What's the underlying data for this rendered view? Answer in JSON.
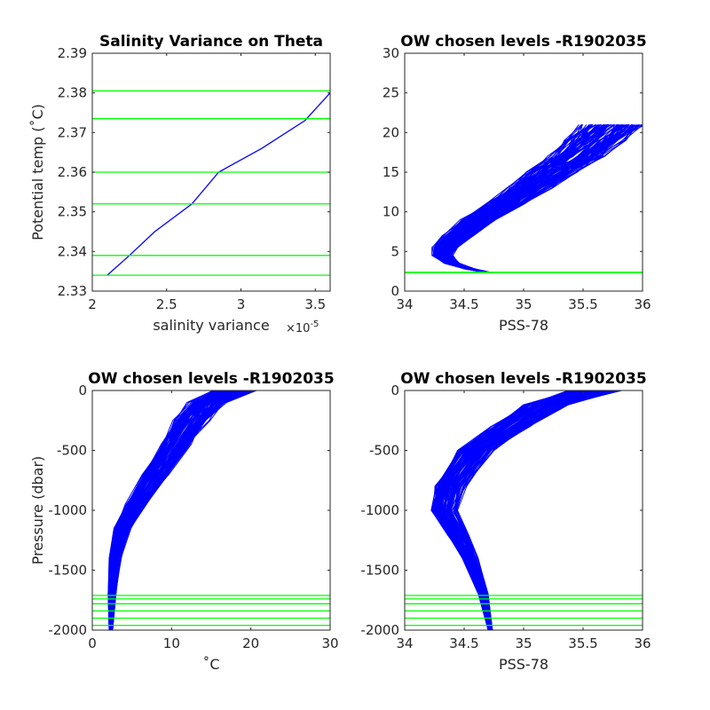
{
  "chart_data": [
    {
      "id": "tl",
      "type": "line",
      "title": "Salinity Variance on Theta",
      "xlabel": "salinity variance",
      "x_exponent_base": "×10",
      "x_exponent_power": "-5",
      "ylabel": "Potential temp (˚C)",
      "xlim": [
        2.0,
        3.6
      ],
      "ylim": [
        2.33,
        2.39
      ],
      "x_ticks": [
        2,
        2.5,
        3,
        3.5
      ],
      "x_tick_labels": [
        "2",
        "2.5",
        "3",
        "3.5"
      ],
      "y_ticks": [
        2.33,
        2.34,
        2.35,
        2.36,
        2.37,
        2.38,
        2.39
      ],
      "y_tick_labels": [
        "2.33",
        "2.34",
        "2.35",
        "2.36",
        "2.37",
        "2.38",
        "2.39"
      ],
      "series": [
        {
          "color": "#0000ff",
          "x": [
            2.1,
            2.25,
            2.42,
            2.67,
            2.85,
            3.14,
            3.43,
            3.6
          ],
          "y": [
            2.334,
            2.339,
            2.345,
            2.352,
            2.36,
            2.366,
            2.373,
            2.38
          ]
        }
      ],
      "hlines": {
        "color": "#00ff00",
        "values": [
          2.334,
          2.339,
          2.352,
          2.36,
          2.3735,
          2.3805
        ]
      }
    },
    {
      "id": "tr",
      "type": "line",
      "title": "OW chosen levels -R1902035",
      "xlabel": "PSS-78",
      "ylabel": "",
      "xlim": [
        34,
        36
      ],
      "ylim": [
        0,
        30
      ],
      "x_ticks": [
        34,
        34.5,
        35,
        35.5,
        36
      ],
      "x_tick_labels": [
        "34",
        "34.5",
        "35",
        "35.5",
        "36"
      ],
      "y_ticks": [
        0,
        5,
        10,
        15,
        20,
        25,
        30
      ],
      "y_tick_labels": [
        "0",
        "5",
        "10",
        "15",
        "20",
        "25",
        "30"
      ],
      "series_envelope": {
        "color": "#0000ff",
        "profile_count": 110,
        "x": [
          34.72,
          34.55,
          34.4,
          34.32,
          34.34,
          34.45,
          34.62,
          34.85,
          35.05,
          35.25,
          35.45,
          35.6,
          35.75
        ],
        "y": [
          2.3,
          2.8,
          3.5,
          4.5,
          5.5,
          7.0,
          9.0,
          11.0,
          13.0,
          15.0,
          17.0,
          19.0,
          21.0
        ],
        "spread": 0.22
      },
      "hlines": {
        "color": "#00ff00",
        "values": [
          2.334,
          2.339,
          2.352,
          2.36,
          2.3735,
          2.3805
        ]
      }
    },
    {
      "id": "bl",
      "type": "line",
      "title": "OW chosen levels -R1902035",
      "xlabel": "˚C",
      "ylabel": "Pressure (dbar)",
      "xlim": [
        0,
        30
      ],
      "ylim": [
        -2000,
        0
      ],
      "x_ticks": [
        0,
        10,
        20,
        30
      ],
      "x_tick_labels": [
        "0",
        "10",
        "20",
        "30"
      ],
      "y_ticks": [
        -2000,
        -1500,
        -1000,
        -500,
        0
      ],
      "y_tick_labels": [
        "-2000",
        "-1500",
        "-1000",
        "-500",
        "0"
      ],
      "series_envelope": {
        "color": "#0000ff",
        "profile_count": 110,
        "x": [
          2.35,
          2.5,
          2.9,
          3.8,
          5.5,
          8.0,
          10.5,
          12.5,
          14.5,
          18.0
        ],
        "y": [
          -2000,
          -1700,
          -1400,
          -1150,
          -950,
          -700,
          -450,
          -250,
          -100,
          0
        ],
        "spread": 2.2
      },
      "hlines": {
        "color": "#00ff00",
        "values": [
          -1960,
          -1900,
          -1840,
          -1780,
          -1740,
          -1710
        ]
      }
    },
    {
      "id": "br",
      "type": "line",
      "title": "OW chosen levels -R1902035",
      "xlabel": "PSS-78",
      "ylabel": "",
      "xlim": [
        34,
        36
      ],
      "ylim": [
        -2000,
        0
      ],
      "x_ticks": [
        34,
        34.5,
        35,
        35.5,
        36
      ],
      "x_tick_labels": [
        "34",
        "34.5",
        "35",
        "35.5",
        "36"
      ],
      "y_ticks": [
        -2000,
        -1500,
        -1000,
        -500,
        0
      ],
      "y_tick_labels": [
        "-2000",
        "-1500",
        "-1000",
        "-500",
        "0"
      ],
      "series_envelope": {
        "color": "#0000ff",
        "profile_count": 110,
        "x": [
          34.72,
          34.66,
          34.55,
          34.45,
          34.33,
          34.38,
          34.6,
          34.9,
          35.2,
          35.6
        ],
        "y": [
          -2000,
          -1700,
          -1400,
          -1200,
          -1000,
          -800,
          -500,
          -300,
          -120,
          0
        ],
        "spread": 0.18
      },
      "hlines": {
        "color": "#00ff00",
        "values": [
          -1960,
          -1900,
          -1840,
          -1780,
          -1740,
          -1710
        ]
      }
    }
  ]
}
